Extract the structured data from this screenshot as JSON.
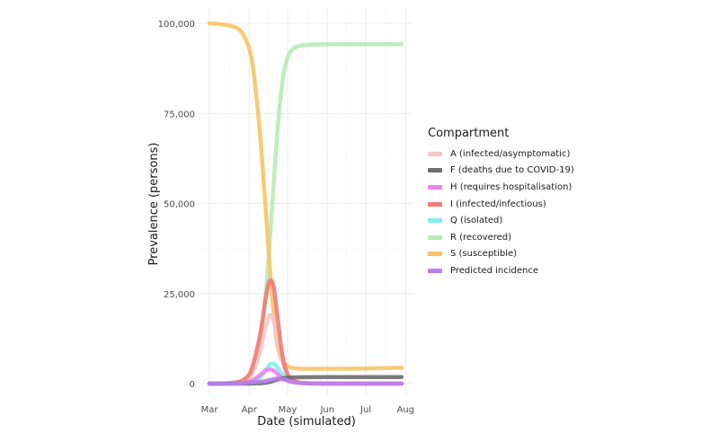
{
  "chart_data": {
    "type": "line",
    "xlabel": "Date (simulated)",
    "ylabel": "Prevalence (persons)",
    "x_ticks": [
      "Mar",
      "Apr",
      "May",
      "Jun",
      "Jul",
      "Aug"
    ],
    "y_ticks": [
      "0",
      "25,000",
      "50,000",
      "75,000",
      "100,000"
    ],
    "ylim": [
      0,
      100000
    ],
    "grid": true,
    "legend_title": "Compartment",
    "legend_position": "right",
    "x": [
      "2020-03-01",
      "2020-03-15",
      "2020-03-25",
      "2020-04-01",
      "2020-04-05",
      "2020-04-10",
      "2020-04-14",
      "2020-04-17",
      "2020-04-20",
      "2020-04-23",
      "2020-04-26",
      "2020-04-29",
      "2020-05-03",
      "2020-05-08",
      "2020-05-15",
      "2020-06-01",
      "2020-07-01",
      "2020-07-29"
    ],
    "series": [
      {
        "name": "A (infected/asymptomatic)",
        "color": "#f4c6ca",
        "values": [
          0,
          50,
          300,
          1500,
          4000,
          9500,
          16000,
          19000,
          17500,
          13000,
          8000,
          4000,
          1500,
          500,
          100,
          0,
          0,
          0
        ]
      },
      {
        "name": "F (deaths due to COVID-19)",
        "color": "#6e6e6e",
        "values": [
          0,
          0,
          0,
          10,
          30,
          100,
          250,
          450,
          750,
          1100,
          1400,
          1600,
          1700,
          1750,
          1780,
          1800,
          1800,
          1800
        ]
      },
      {
        "name": "H (requires hospitalisation)",
        "color": "#ee82ee",
        "values": [
          0,
          20,
          100,
          500,
          1200,
          2500,
          3700,
          4000,
          3600,
          2700,
          1800,
          1100,
          600,
          300,
          100,
          0,
          0,
          0
        ]
      },
      {
        "name": "I (infected/infectious)",
        "color": "#f07a78",
        "values": [
          0,
          100,
          600,
          2500,
          6500,
          14500,
          24000,
          28500,
          27000,
          19000,
          10000,
          4500,
          1500,
          500,
          100,
          0,
          0,
          0
        ]
      },
      {
        "name": "Q (isolated)",
        "color": "#7fefef",
        "values": [
          0,
          10,
          60,
          300,
          800,
          2000,
          3800,
          5200,
          5500,
          4500,
          3000,
          1800,
          900,
          400,
          150,
          50,
          0,
          0
        ]
      },
      {
        "name": "R (recovered)",
        "color": "#b7ebb4",
        "values": [
          0,
          100,
          500,
          1500,
          4500,
          12000,
          25000,
          39000,
          55000,
          70000,
          81000,
          88000,
          92000,
          93500,
          94000,
          94200,
          94200,
          94200
        ]
      },
      {
        "name": "S (susceptible)",
        "color": "#f7c467",
        "values": [
          100000,
          99500,
          98000,
          93000,
          85000,
          67000,
          48000,
          33000,
          20000,
          11000,
          7000,
          5500,
          4500,
          4200,
          4100,
          4100,
          4200,
          4400
        ]
      },
      {
        "name": "Predicted incidence",
        "color": "#b97fef",
        "values": [
          0,
          20,
          100,
          300,
          450,
          550,
          750,
          1000,
          1250,
          1400,
          1300,
          1100,
          600,
          250,
          100,
          20,
          0,
          0
        ]
      }
    ]
  }
}
